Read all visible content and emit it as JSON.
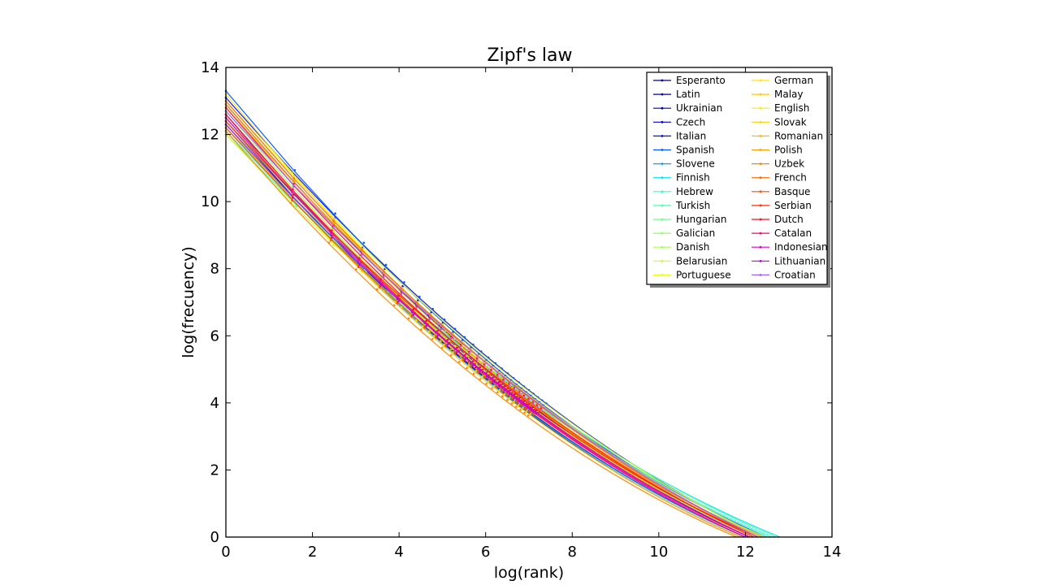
{
  "chart_data": {
    "type": "line",
    "title": "Zipf's law",
    "xlabel": "log(rank)",
    "ylabel": "log(frecuency)",
    "xlim": [
      0,
      14
    ],
    "ylim": [
      0,
      14
    ],
    "xticks": [
      "0",
      "2",
      "4",
      "6",
      "8",
      "10",
      "12",
      "14"
    ],
    "yticks": [
      "0",
      "2",
      "4",
      "6",
      "8",
      "10",
      "12",
      "14"
    ],
    "grid": false,
    "legend_position": "top-right",
    "legend_columns": 2,
    "series": [
      {
        "name": "Esperanto",
        "color": "#000080",
        "start": 12.6,
        "end": 11.9
      },
      {
        "name": "Latin",
        "color": "#000096",
        "start": 12.4,
        "end": 12.0
      },
      {
        "name": "Ukrainian",
        "color": "#0000b4",
        "start": 12.9,
        "end": 12.2
      },
      {
        "name": "Czech",
        "color": "#0000d8",
        "start": 12.5,
        "end": 12.1
      },
      {
        "name": "Italian",
        "color": "#0010ff",
        "start": 13.1,
        "end": 12.4
      },
      {
        "name": "Spanish",
        "color": "#0058ff",
        "start": 13.3,
        "end": 12.5
      },
      {
        "name": "Slovene",
        "color": "#00a4ff",
        "start": 12.3,
        "end": 12.0
      },
      {
        "name": "Finnish",
        "color": "#00e4f8",
        "start": 12.2,
        "end": 12.8
      },
      {
        "name": "Hebrew",
        "color": "#29ffce",
        "start": 12.1,
        "end": 12.6
      },
      {
        "name": "Turkish",
        "color": "#4dffaa",
        "start": 12.0,
        "end": 12.7
      },
      {
        "name": "Hungarian",
        "color": "#6dff8a",
        "start": 12.2,
        "end": 12.5
      },
      {
        "name": "Galician",
        "color": "#8dff6a",
        "start": 12.7,
        "end": 12.1
      },
      {
        "name": "Danish",
        "color": "#aaff4d",
        "start": 12.4,
        "end": 12.2
      },
      {
        "name": "Belarusian",
        "color": "#caff2d",
        "start": 12.0,
        "end": 12.3
      },
      {
        "name": "Portuguese",
        "color": "#eaff0d",
        "start": 13.0,
        "end": 12.4
      },
      {
        "name": "German",
        "color": "#ffe600",
        "start": 12.6,
        "end": 12.3
      },
      {
        "name": "Malay",
        "color": "#ffc800",
        "start": 12.3,
        "end": 11.9
      },
      {
        "name": "English",
        "color": "#ffea00",
        "start": 13.2,
        "end": 12.0
      },
      {
        "name": "Slovak",
        "color": "#ffd200",
        "start": 12.5,
        "end": 12.2
      },
      {
        "name": "Romanian",
        "color": "#ffb900",
        "start": 12.8,
        "end": 12.3
      },
      {
        "name": "Polish",
        "color": "#ff9f00",
        "start": 12.9,
        "end": 12.4
      },
      {
        "name": "Uzbek",
        "color": "#ff8600",
        "start": 12.1,
        "end": 11.8
      },
      {
        "name": "French",
        "color": "#ff6800",
        "start": 13.0,
        "end": 12.3
      },
      {
        "name": "Basque",
        "color": "#ff4a00",
        "start": 12.2,
        "end": 12.0
      },
      {
        "name": "Serbian",
        "color": "#ff2d00",
        "start": 12.4,
        "end": 12.2
      },
      {
        "name": "Dutch",
        "color": "#ff0a20",
        "start": 12.8,
        "end": 12.3
      },
      {
        "name": "Catalan",
        "color": "#ff0066",
        "start": 12.6,
        "end": 12.1
      },
      {
        "name": "Indonesian",
        "color": "#e000c8",
        "start": 12.5,
        "end": 12.0
      },
      {
        "name": "Lithuanian",
        "color": "#c000e0",
        "start": 12.3,
        "end": 12.1
      },
      {
        "name": "Croatian",
        "color": "#a060ff",
        "start": 12.7,
        "end": 12.3
      }
    ]
  }
}
